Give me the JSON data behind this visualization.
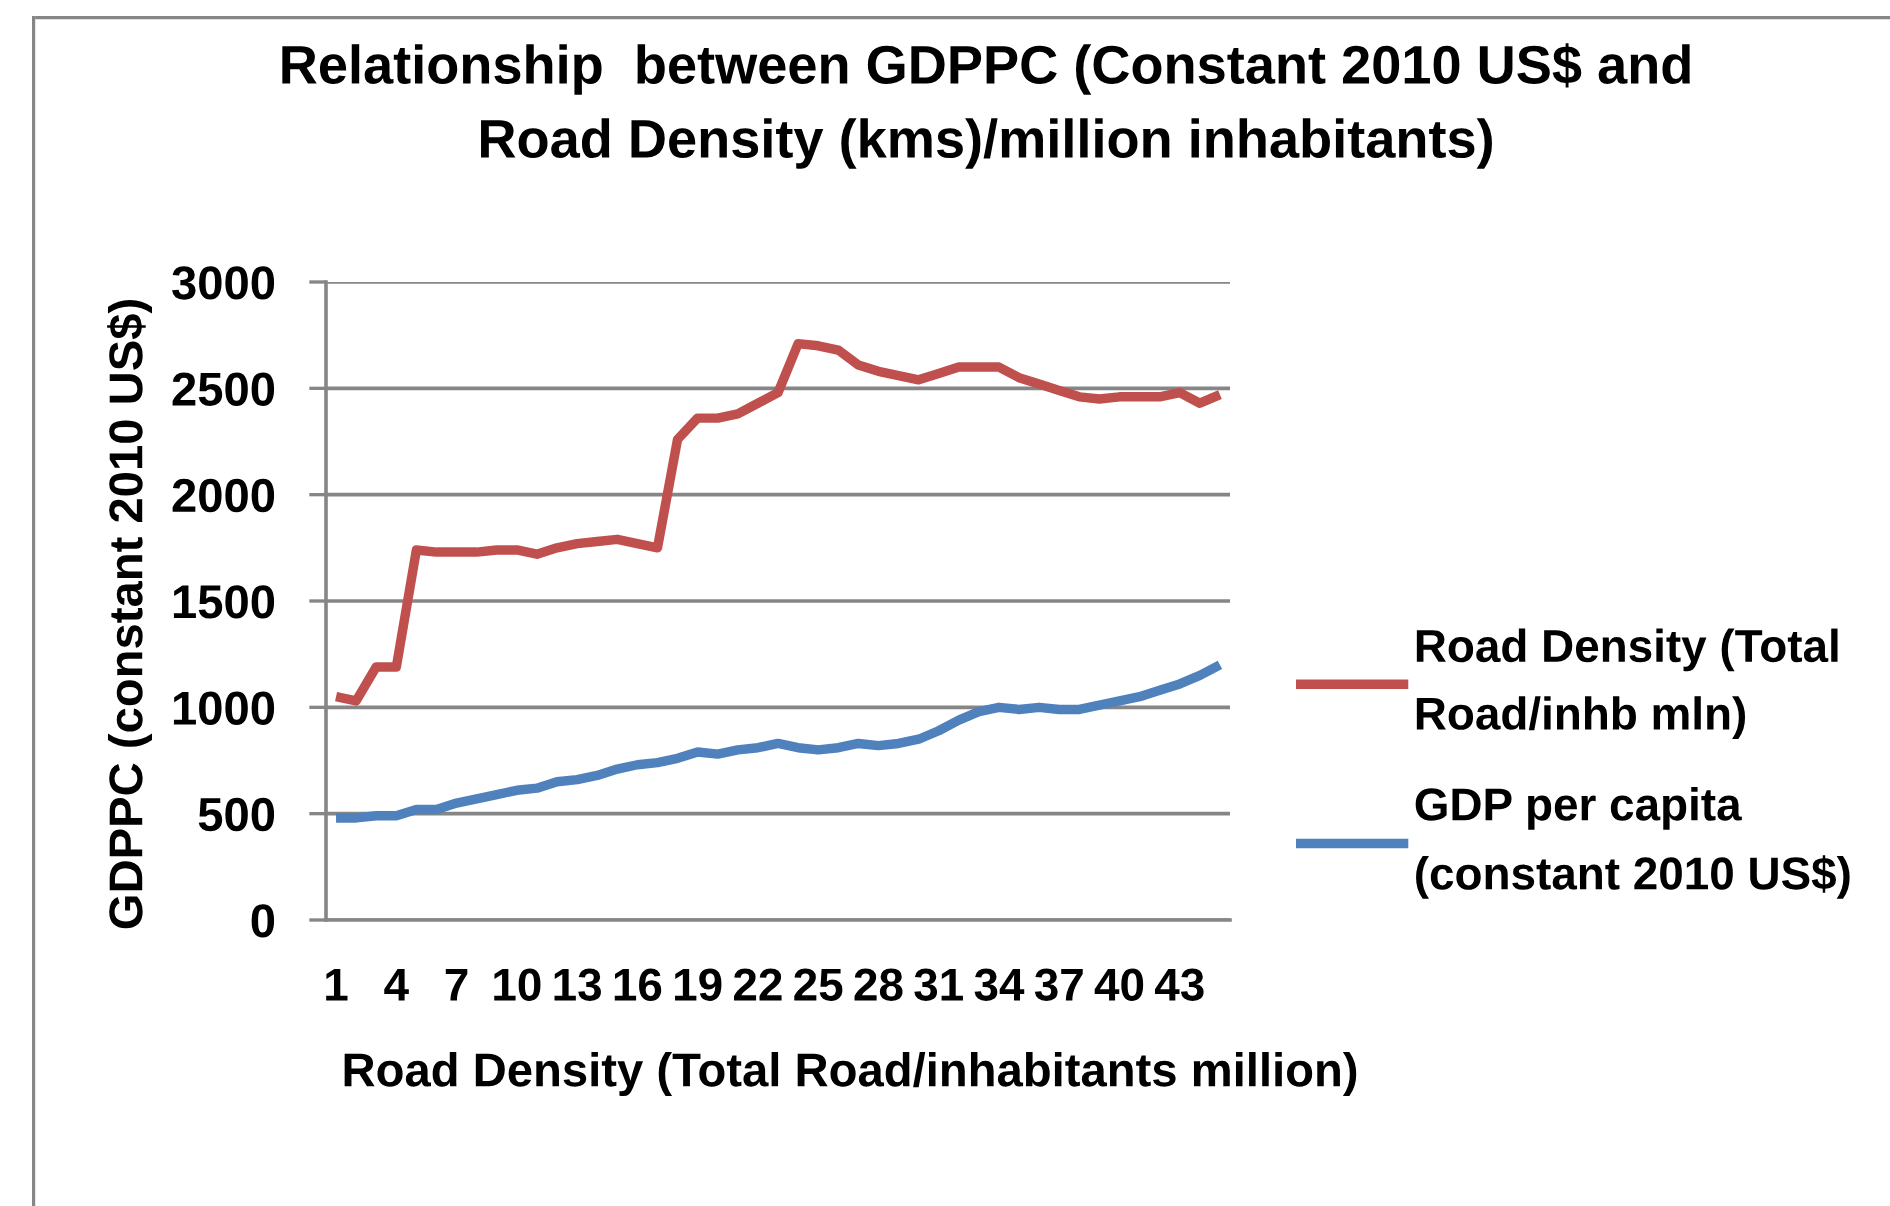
{
  "chart_data": {
    "type": "line",
    "title": "Relationship  between GDPPC (Constant 2010 US$ and\nRoad Density (kms)/million inhabitants)",
    "xlabel": "Road Density (Total Road/inhabitants million)",
    "ylabel": "GDPPC (constant 2010 US$)",
    "categories": [
      "1",
      null,
      null,
      "4",
      null,
      null,
      "7",
      null,
      null,
      "10",
      null,
      null,
      "13",
      null,
      null,
      "16",
      null,
      null,
      "19",
      null,
      null,
      "22",
      null,
      null,
      "25",
      null,
      null,
      "28",
      null,
      null,
      "31",
      null,
      null,
      "34",
      null,
      null,
      "37",
      null,
      null,
      "40",
      null,
      null,
      "43",
      null,
      null
    ],
    "series": [
      {
        "name": "Road Density (Total\nRoad/inhb mln)",
        "color": "#c0504d",
        "values": [
          1050,
          1030,
          1190,
          1190,
          1740,
          1730,
          1730,
          1730,
          1740,
          1740,
          1720,
          1750,
          1770,
          1780,
          1790,
          1770,
          1750,
          2260,
          2360,
          2360,
          2380,
          2430,
          2480,
          2710,
          2700,
          2680,
          2610,
          2580,
          2560,
          2540,
          2570,
          2600,
          2600,
          2600,
          2550,
          2520,
          2490,
          2460,
          2450,
          2460,
          2460,
          2460,
          2480,
          2430,
          2470
        ]
      },
      {
        "name": "GDP per capita\n(constant 2010 US$)",
        "color": "#4f81bd",
        "values": [
          480,
          480,
          490,
          490,
          520,
          520,
          550,
          570,
          590,
          610,
          620,
          650,
          660,
          680,
          710,
          730,
          740,
          760,
          790,
          780,
          800,
          810,
          830,
          810,
          800,
          810,
          830,
          820,
          830,
          850,
          890,
          940,
          980,
          1000,
          990,
          1000,
          990,
          990,
          1010,
          1030,
          1050,
          1080,
          1110,
          1150,
          1200
        ]
      }
    ],
    "ylim": [
      0,
      3000
    ],
    "yticks": [
      0,
      500,
      1000,
      1500,
      2000,
      2500,
      3000
    ],
    "grid": "y",
    "legend": "right",
    "line_style": "solid"
  }
}
